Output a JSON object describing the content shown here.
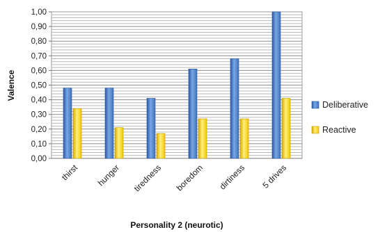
{
  "chart_data": {
    "type": "bar",
    "categories": [
      "thirst",
      "hunger",
      "tiredness",
      "boredom",
      "dirtiness",
      "5 drives"
    ],
    "series": [
      {
        "name": "Deliberative",
        "values": [
          0.48,
          0.48,
          0.41,
          0.61,
          0.68,
          1.0
        ],
        "color": "#3d72bd"
      },
      {
        "name": "Reactive",
        "values": [
          0.34,
          0.21,
          0.17,
          0.27,
          0.27,
          0.41
        ],
        "color": "#f5c800"
      }
    ],
    "xlabel": "Personality 2 (neurotic)",
    "ylabel": "Valence",
    "ylim": [
      0,
      1
    ],
    "yticks": [
      "0,00",
      "0,10",
      "0,20",
      "0,30",
      "0,40",
      "0,50",
      "0,60",
      "0,70",
      "0,80",
      "0,90",
      "1,00"
    ],
    "grid": "horizontal",
    "legend_position": "right"
  }
}
